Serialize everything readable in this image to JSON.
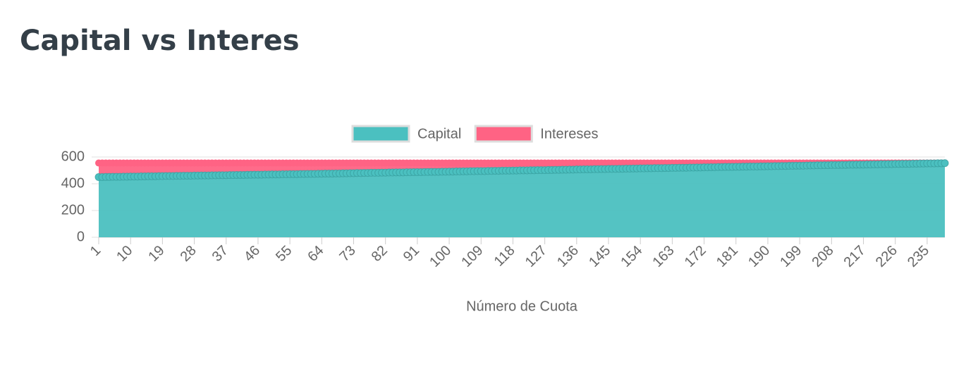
{
  "chart_data": {
    "type": "stacked-area",
    "title": "Capital vs Interes",
    "xlabel": "Número de Cuota",
    "legend": "top",
    "categories": [
      1,
      null,
      null,
      null,
      null,
      null,
      null,
      null,
      null,
      10,
      null,
      null,
      null,
      null,
      null,
      null,
      null,
      null,
      19,
      null,
      null,
      null,
      null,
      null,
      null,
      null,
      null,
      28,
      null,
      null,
      null,
      null,
      null,
      null,
      null,
      null,
      37,
      null,
      null,
      null,
      null,
      null,
      null,
      null,
      null,
      46,
      null,
      null,
      null,
      null,
      null,
      null,
      null,
      null,
      55,
      null,
      null,
      null,
      null,
      null,
      null,
      null,
      null,
      64,
      null,
      null,
      null,
      null,
      null,
      null,
      null,
      null,
      73,
      null,
      null,
      null,
      null,
      null,
      null,
      null,
      null,
      82,
      null,
      null,
      null,
      null,
      null,
      null,
      null,
      null,
      91,
      null,
      null,
      null,
      null,
      null,
      null,
      null,
      null,
      100,
      null,
      null,
      null,
      null,
      null,
      null,
      null,
      null,
      109,
      null,
      null,
      null,
      null,
      null,
      null,
      null,
      null,
      118,
      null,
      null,
      null,
      null,
      null,
      null,
      null,
      null,
      127,
      null,
      null,
      null,
      null,
      null,
      null,
      null,
      null,
      136,
      null,
      null,
      null,
      null,
      null,
      null,
      null,
      null,
      145,
      null,
      null,
      null,
      null,
      null,
      null,
      null,
      null,
      154,
      null,
      null,
      null,
      null,
      null,
      null,
      null,
      null,
      163,
      null,
      null,
      null,
      null,
      null,
      null,
      null,
      null,
      172,
      null,
      null,
      null,
      null,
      null,
      null,
      null,
      null,
      181,
      null,
      null,
      null,
      null,
      null,
      null,
      null,
      null,
      190,
      null,
      null,
      null,
      null,
      null,
      null,
      null,
      null,
      199,
      null,
      null,
      null,
      null,
      null,
      null,
      null,
      null,
      208,
      null,
      null,
      null,
      null,
      null,
      null,
      null,
      null,
      217,
      null,
      null,
      null,
      null,
      null,
      null,
      null,
      null,
      226,
      null,
      null,
      null,
      null,
      null,
      null,
      null,
      null,
      235,
      null,
      null,
      null,
      null,
      null
    ],
    "series": [
      {
        "name": "Capital",
        "color": "#4bc0c0",
        "values": [
          450,
          450,
          451,
          451,
          452,
          452,
          452,
          453,
          453,
          454,
          454,
          454,
          455,
          455,
          456,
          456,
          456,
          457,
          457,
          458,
          458,
          458,
          459,
          459,
          460,
          460,
          460,
          461,
          461,
          462,
          462,
          462,
          463,
          463,
          464,
          464,
          464,
          465,
          465,
          466,
          466,
          466,
          467,
          467,
          468,
          468,
          468,
          469,
          469,
          470,
          470,
          470,
          471,
          471,
          472,
          472,
          472,
          473,
          473,
          474,
          474,
          474,
          475,
          475,
          476,
          476,
          476,
          477,
          477,
          478,
          478,
          479,
          479,
          480,
          480,
          481,
          481,
          482,
          482,
          482,
          483,
          483,
          484,
          484,
          485,
          485,
          485,
          486,
          486,
          487,
          487,
          487,
          488,
          488,
          489,
          489,
          489,
          490,
          490,
          491,
          491,
          492,
          492,
          493,
          493,
          494,
          494,
          495,
          495,
          495,
          496,
          496,
          497,
          497,
          498,
          498,
          498,
          499,
          499,
          500,
          500,
          500,
          501,
          501,
          502,
          502,
          502,
          503,
          503,
          504,
          504,
          505,
          505,
          506,
          506,
          507,
          507,
          508,
          508,
          508,
          509,
          509,
          510,
          510,
          511,
          511,
          511,
          512,
          512,
          513,
          513,
          514,
          514,
          515,
          515,
          516,
          516,
          517,
          517,
          517,
          518,
          518,
          519,
          519,
          520,
          520,
          520,
          521,
          521,
          522,
          522,
          523,
          523,
          524,
          524,
          525,
          525,
          526,
          526,
          526,
          527,
          527,
          528,
          528,
          529,
          529,
          529,
          530,
          530,
          531,
          531,
          532,
          532,
          533,
          533,
          534,
          534,
          535,
          535,
          535,
          536,
          537,
          537,
          538,
          538,
          539,
          539,
          540,
          540,
          540,
          541,
          541,
          542,
          542,
          543,
          543,
          543,
          544,
          544,
          545,
          545,
          546,
          546,
          547,
          547,
          548,
          548,
          549,
          549,
          549,
          550,
          550,
          551,
          551,
          552,
          552,
          552,
          553,
          553,
          554
        ]
      },
      {
        "name": "Intereses",
        "color": "#ff6384",
        "values": [
          105,
          105,
          104,
          104,
          103,
          103,
          103,
          102,
          102,
          101,
          101,
          101,
          100,
          100,
          99,
          99,
          99,
          98,
          98,
          97,
          97,
          97,
          96,
          96,
          95,
          95,
          95,
          94,
          94,
          93,
          93,
          93,
          92,
          92,
          91,
          91,
          91,
          90,
          90,
          89,
          89,
          89,
          88,
          88,
          87,
          87,
          87,
          86,
          86,
          85,
          85,
          85,
          84,
          84,
          83,
          83,
          83,
          82,
          82,
          81,
          81,
          81,
          80,
          80,
          79,
          79,
          79,
          78,
          78,
          77,
          77,
          76,
          76,
          75,
          75,
          74,
          74,
          73,
          73,
          73,
          72,
          72,
          71,
          71,
          70,
          70,
          70,
          69,
          69,
          68,
          68,
          68,
          67,
          67,
          66,
          66,
          66,
          65,
          65,
          64,
          64,
          63,
          63,
          62,
          62,
          61,
          61,
          60,
          60,
          60,
          59,
          59,
          58,
          58,
          57,
          57,
          57,
          56,
          56,
          55,
          55,
          55,
          54,
          54,
          53,
          53,
          53,
          52,
          52,
          51,
          51,
          50,
          50,
          49,
          49,
          48,
          48,
          47,
          47,
          47,
          46,
          46,
          45,
          45,
          44,
          44,
          44,
          43,
          43,
          42,
          42,
          41,
          41,
          40,
          40,
          39,
          39,
          38,
          38,
          38,
          37,
          37,
          36,
          36,
          35,
          35,
          35,
          34,
          34,
          33,
          33,
          32,
          32,
          31,
          31,
          30,
          30,
          29,
          29,
          29,
          28,
          28,
          27,
          27,
          26,
          26,
          26,
          25,
          25,
          24,
          24,
          23,
          23,
          22,
          22,
          21,
          21,
          20,
          20,
          20,
          19,
          18,
          18,
          17,
          17,
          16,
          16,
          15,
          15,
          15,
          14,
          14,
          13,
          13,
          12,
          12,
          12,
          11,
          11,
          10,
          10,
          9,
          9,
          8,
          8,
          7,
          7,
          6,
          6,
          6,
          5,
          5,
          4,
          4,
          3,
          3,
          3,
          2,
          2,
          1
        ]
      }
    ],
    "ylim": [
      0,
      600
    ],
    "yticks": [
      0,
      200,
      400,
      600
    ],
    "grid": true
  }
}
